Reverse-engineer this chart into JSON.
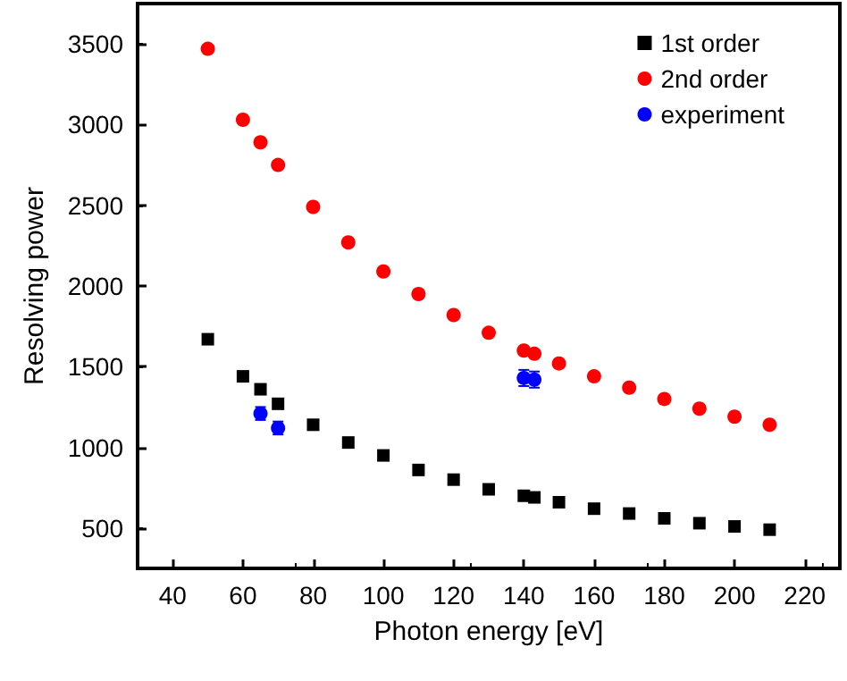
{
  "chart_data": {
    "type": "scatter",
    "xlabel": "Photon energy [eV]",
    "ylabel": "Resolving power",
    "xlim": [
      30,
      230
    ],
    "xticks": [
      40,
      60,
      80,
      100,
      120,
      140,
      160,
      180,
      200,
      220
    ],
    "ylim": [
      250,
      3750
    ],
    "yticks": [
      500,
      1000,
      1500,
      2000,
      2500,
      3000,
      3500
    ],
    "grid": false,
    "legend": "top right",
    "series": [
      {
        "name": "1st order",
        "color": "#000000",
        "marker": "square",
        "x": [
          50,
          60,
          65,
          70,
          80,
          90,
          100,
          110,
          120,
          130,
          140,
          143,
          150,
          160,
          170,
          180,
          190,
          200,
          210
        ],
        "values": [
          1670,
          1440,
          1360,
          1270,
          1140,
          1030,
          950,
          860,
          800,
          740,
          700,
          690,
          660,
          620,
          590,
          560,
          530,
          510,
          490
        ]
      },
      {
        "name": "2nd order",
        "color": "#ff0000",
        "marker": "circle",
        "x": [
          50,
          60,
          65,
          70,
          80,
          90,
          100,
          110,
          120,
          130,
          140,
          143,
          150,
          160,
          170,
          180,
          190,
          200,
          210
        ],
        "values": [
          3470,
          3030,
          2890,
          2750,
          2490,
          2270,
          2090,
          1950,
          1820,
          1710,
          1600,
          1580,
          1520,
          1440,
          1370,
          1300,
          1240,
          1190,
          1140
        ]
      },
      {
        "name": "experiment",
        "color": "#0000ff",
        "marker": "circle",
        "x": [
          65,
          70,
          140,
          143
        ],
        "values": [
          1210,
          1120,
          1430,
          1420
        ],
        "errors": [
          40,
          40,
          50,
          50
        ]
      }
    ]
  }
}
